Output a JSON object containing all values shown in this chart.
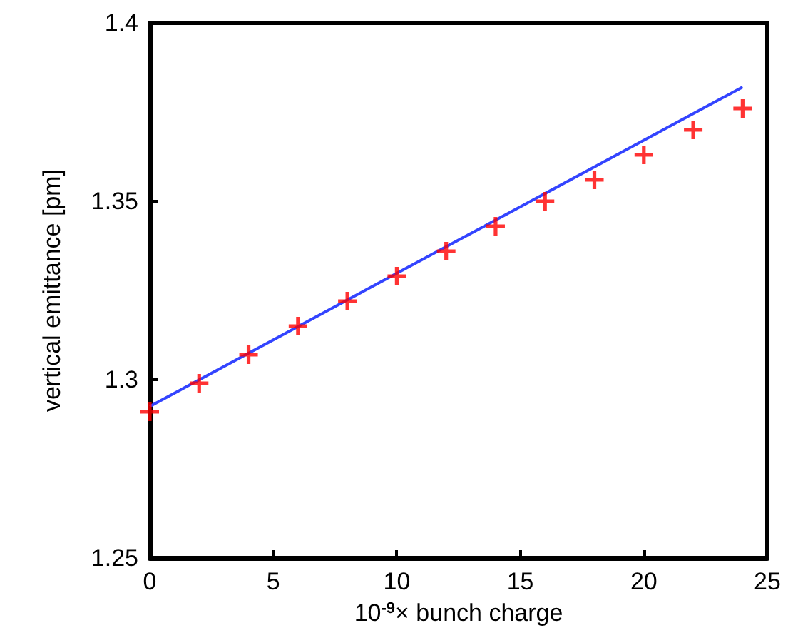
{
  "chart_data": {
    "type": "scatter",
    "xlabel": "10$^{-9}$× bunch charge",
    "ylabel": "vertical emittance [pm]",
    "xlim": [
      0,
      25
    ],
    "xticks": [
      0,
      5,
      10,
      15,
      20,
      25
    ],
    "ylim": [
      1.25,
      1.4
    ],
    "yticks": [
      1.25,
      1.3,
      1.35,
      1.4
    ],
    "grid": false,
    "series": [
      {
        "marker": "cross",
        "color": "#ff0000",
        "x": [
          0,
          2,
          4,
          6,
          8,
          10,
          12,
          14,
          16,
          18,
          20,
          22,
          24
        ],
        "values": [
          1.291,
          1.299,
          1.307,
          1.315,
          1.322,
          1.329,
          1.336,
          1.343,
          1.35,
          1.356,
          1.363,
          1.37,
          1.376
        ]
      },
      {
        "type": "line",
        "marker": "none",
        "line_style": "solid",
        "color": "#3344ff",
        "x": [
          0,
          24
        ],
        "values": [
          1.2925,
          1.382
        ]
      }
    ]
  }
}
